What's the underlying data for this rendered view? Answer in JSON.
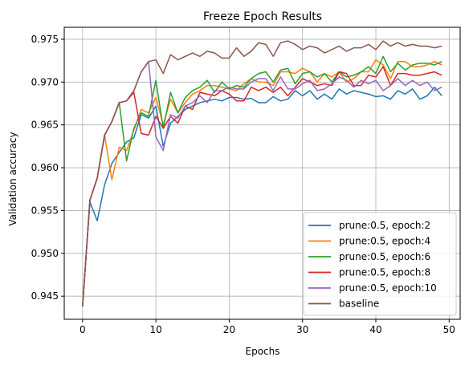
{
  "chart_data": {
    "type": "line",
    "title": "Freeze Epoch Results",
    "xlabel": "Epochs",
    "ylabel": "Validation accuracy",
    "xlim": [
      -2.5,
      51.5
    ],
    "ylim": [
      0.9423,
      0.9764
    ],
    "xticks": [
      0,
      10,
      20,
      30,
      40,
      50
    ],
    "yticks": [
      0.945,
      0.95,
      0.955,
      0.96,
      0.965,
      0.97,
      0.975
    ],
    "x_tick_labels": [
      "0",
      "10",
      "20",
      "30",
      "40",
      "50"
    ],
    "y_tick_labels": [
      "0.945",
      "0.950",
      "0.955",
      "0.960",
      "0.965",
      "0.970",
      "0.975"
    ],
    "grid": true,
    "legend_position": "lower-right",
    "x": [
      0,
      1,
      2,
      3,
      4,
      5,
      6,
      7,
      8,
      9,
      10,
      11,
      12,
      13,
      14,
      15,
      16,
      17,
      18,
      19,
      20,
      21,
      22,
      23,
      24,
      25,
      26,
      27,
      28,
      29,
      30,
      31,
      32,
      33,
      34,
      35,
      36,
      37,
      38,
      39,
      40,
      41,
      42,
      43,
      44,
      45,
      46,
      47,
      48,
      49
    ],
    "series": [
      {
        "name": "prune:0.5, epoch:2",
        "color": "#1f77b4",
        "values": [
          0.9438,
          0.956,
          0.9538,
          0.958,
          0.9605,
          0.9618,
          0.963,
          0.9635,
          0.9662,
          0.9658,
          0.9672,
          0.9625,
          0.9652,
          0.966,
          0.9668,
          0.9672,
          0.9676,
          0.9678,
          0.968,
          0.9678,
          0.9682,
          0.9682,
          0.968,
          0.9681,
          0.9676,
          0.9676,
          0.9683,
          0.9678,
          0.968,
          0.969,
          0.9684,
          0.969,
          0.968,
          0.9686,
          0.968,
          0.9692,
          0.9686,
          0.969,
          0.9688,
          0.9686,
          0.9683,
          0.9684,
          0.968,
          0.969,
          0.9686,
          0.9692,
          0.968,
          0.9684,
          0.9694,
          0.9684
        ]
      },
      {
        "name": "prune:0.5, epoch:4",
        "color": "#ff7f0e",
        "values": [
          0.9438,
          0.9562,
          0.9588,
          0.9638,
          0.9586,
          0.9624,
          0.962,
          0.9644,
          0.9668,
          0.9664,
          0.9682,
          0.965,
          0.968,
          0.9664,
          0.9676,
          0.9686,
          0.969,
          0.9696,
          0.9696,
          0.9694,
          0.9692,
          0.969,
          0.9698,
          0.9704,
          0.97,
          0.97,
          0.9696,
          0.9712,
          0.9712,
          0.971,
          0.9716,
          0.9712,
          0.97,
          0.971,
          0.9706,
          0.9712,
          0.97,
          0.9704,
          0.9712,
          0.9712,
          0.9726,
          0.972,
          0.9704,
          0.9724,
          0.9724,
          0.9718,
          0.9718,
          0.972,
          0.9724,
          0.972
        ]
      },
      {
        "name": "prune:0.5, epoch:6",
        "color": "#2ca02c",
        "values": [
          0.9438,
          0.9562,
          0.9588,
          0.9638,
          0.9654,
          0.9676,
          0.9608,
          0.9646,
          0.9664,
          0.966,
          0.9702,
          0.9646,
          0.9688,
          0.9664,
          0.9682,
          0.969,
          0.9694,
          0.9702,
          0.9688,
          0.97,
          0.9692,
          0.9696,
          0.9694,
          0.9704,
          0.971,
          0.9712,
          0.97,
          0.9714,
          0.9716,
          0.9698,
          0.971,
          0.9712,
          0.9706,
          0.971,
          0.97,
          0.9712,
          0.9706,
          0.9708,
          0.9712,
          0.9718,
          0.971,
          0.973,
          0.9712,
          0.9722,
          0.9714,
          0.972,
          0.9722,
          0.9722,
          0.972,
          0.9724
        ]
      },
      {
        "name": "prune:0.5, epoch:8",
        "color": "#d62728",
        "values": [
          0.9438,
          0.9562,
          0.9588,
          0.9638,
          0.9654,
          0.9676,
          0.9678,
          0.9688,
          0.964,
          0.9638,
          0.966,
          0.9646,
          0.966,
          0.9652,
          0.9672,
          0.9668,
          0.9688,
          0.9686,
          0.9684,
          0.969,
          0.9686,
          0.9678,
          0.9678,
          0.9694,
          0.969,
          0.9694,
          0.9688,
          0.9694,
          0.9684,
          0.9694,
          0.9704,
          0.97,
          0.9696,
          0.9698,
          0.9696,
          0.9712,
          0.971,
          0.9696,
          0.9696,
          0.9708,
          0.9706,
          0.9718,
          0.9696,
          0.971,
          0.971,
          0.9708,
          0.9708,
          0.971,
          0.9712,
          0.9708
        ]
      },
      {
        "name": "prune:0.5, epoch:10",
        "color": "#9467bd",
        "values": [
          0.9438,
          0.9562,
          0.9588,
          0.9638,
          0.9654,
          0.9676,
          0.9678,
          0.969,
          0.9712,
          0.9724,
          0.9636,
          0.962,
          0.9662,
          0.9658,
          0.9672,
          0.9676,
          0.9684,
          0.9676,
          0.969,
          0.969,
          0.9694,
          0.9692,
          0.9692,
          0.97,
          0.9704,
          0.9704,
          0.969,
          0.9706,
          0.9692,
          0.9692,
          0.9698,
          0.9702,
          0.969,
          0.9692,
          0.9698,
          0.9706,
          0.9702,
          0.9694,
          0.9702,
          0.9698,
          0.9702,
          0.969,
          0.9696,
          0.9704,
          0.9696,
          0.9702,
          0.9696,
          0.97,
          0.969,
          0.9694
        ]
      },
      {
        "name": "baseline",
        "color": "#8c564b",
        "values": [
          0.9438,
          0.9562,
          0.9588,
          0.9638,
          0.9654,
          0.9676,
          0.9678,
          0.969,
          0.9712,
          0.9724,
          0.9726,
          0.971,
          0.9732,
          0.9726,
          0.973,
          0.9734,
          0.973,
          0.9736,
          0.9734,
          0.9728,
          0.9728,
          0.974,
          0.973,
          0.9736,
          0.9746,
          0.9744,
          0.973,
          0.9746,
          0.9748,
          0.9744,
          0.9738,
          0.9742,
          0.974,
          0.9734,
          0.9738,
          0.9742,
          0.9736,
          0.974,
          0.974,
          0.9744,
          0.9738,
          0.9748,
          0.9742,
          0.9746,
          0.9742,
          0.9744,
          0.9742,
          0.9742,
          0.974,
          0.9742
        ]
      }
    ]
  }
}
